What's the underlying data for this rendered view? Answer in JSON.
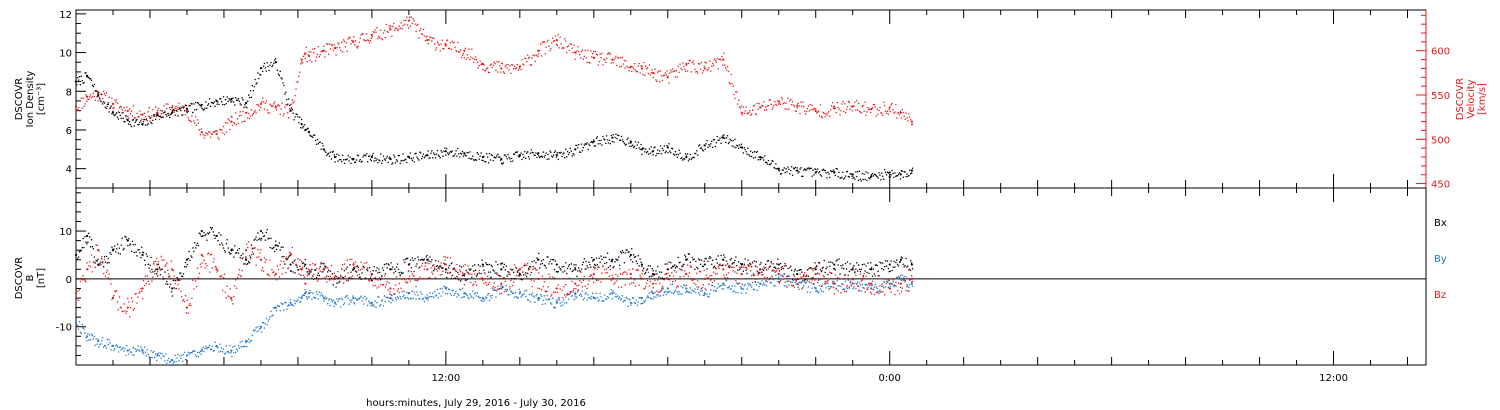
{
  "figure": {
    "xlabel": "hours:minutes, July 29, 2016 - July 30, 2016"
  },
  "colors": {
    "density": "#000000",
    "velocity": "#e41a1c",
    "bx": "#000000",
    "by": "#1f78c8",
    "bz": "#e41a1c"
  },
  "chart_data": [
    {
      "type": "scatter",
      "panel": "plasma",
      "x_unit": "hours since 2016-07-29 00:00",
      "xlim": [
        2.0,
        38.5
      ],
      "xticks": [
        {
          "x": 12,
          "label": "12:00"
        },
        {
          "x": 24,
          "label": "0:00"
        },
        {
          "x": 36,
          "label": "12:00"
        }
      ],
      "left_axis": {
        "label_lines": [
          "DSCOVR",
          "Ion Density",
          "[cm⁻³]"
        ],
        "ylim": [
          3,
          12.2
        ],
        "ticks": [
          4,
          6,
          8,
          10,
          12
        ]
      },
      "right_axis": {
        "label_lines": [
          "DSCOVR",
          "Velocity",
          "[km/s]"
        ],
        "ylim": [
          445,
          646
        ],
        "ticks": [
          450,
          500,
          550,
          600
        ]
      },
      "series": [
        {
          "key": "density",
          "axis": "left",
          "x": [
            2.0,
            2.3,
            2.6,
            3.0,
            3.4,
            3.8,
            4.2,
            4.6,
            5.0,
            5.4,
            5.8,
            6.2,
            6.6,
            7.0,
            7.4,
            7.8,
            8.1,
            8.2,
            8.3,
            8.7,
            9.0,
            9.5,
            10.0,
            10.5,
            11.0,
            11.5,
            12.0,
            12.5,
            13.0,
            13.5,
            14.0,
            14.5,
            15.0,
            15.5,
            16.0,
            16.5,
            17.0,
            17.3,
            17.6,
            18.0,
            18.5,
            19.0,
            19.5,
            20.0,
            20.5,
            21.0,
            21.5,
            22.0,
            22.5,
            23.0,
            23.5,
            24.0,
            24.3,
            24.6
          ],
          "y": [
            8.5,
            8.8,
            7.8,
            6.9,
            6.5,
            6.3,
            6.8,
            6.9,
            7.1,
            7.3,
            7.5,
            7.6,
            7.4,
            9.2,
            9.5,
            7.0,
            6.3,
            6.0,
            5.9,
            5.0,
            4.6,
            4.5,
            4.6,
            4.5,
            4.6,
            4.7,
            4.9,
            4.8,
            4.6,
            4.5,
            4.7,
            4.8,
            4.7,
            5.0,
            5.4,
            5.6,
            5.4,
            5.0,
            4.9,
            5.1,
            4.6,
            5.2,
            5.6,
            5.1,
            4.6,
            4.0,
            3.9,
            3.8,
            3.8,
            3.7,
            3.6,
            3.8,
            3.7,
            3.9
          ]
        },
        {
          "key": "velocity",
          "axis": "right",
          "x": [
            2.0,
            2.3,
            2.6,
            3.0,
            3.4,
            3.8,
            4.2,
            4.6,
            5.0,
            5.4,
            5.8,
            6.2,
            6.6,
            7.0,
            7.4,
            7.8,
            8.1,
            8.2,
            8.3,
            8.7,
            9.0,
            9.5,
            10.0,
            10.5,
            11.0,
            11.5,
            12.0,
            12.5,
            13.0,
            13.5,
            14.0,
            14.5,
            15.0,
            15.5,
            16.0,
            16.5,
            17.0,
            17.3,
            17.6,
            18.0,
            18.5,
            19.0,
            19.5,
            20.0,
            20.5,
            21.0,
            21.5,
            22.0,
            22.5,
            23.0,
            23.5,
            24.0,
            24.3,
            24.6
          ],
          "y": [
            537,
            548,
            552,
            540,
            532,
            528,
            530,
            536,
            533,
            508,
            506,
            520,
            530,
            540,
            536,
            532,
            590,
            597,
            594,
            600,
            603,
            610,
            618,
            624,
            634,
            612,
            606,
            600,
            585,
            580,
            582,
            600,
            612,
            598,
            592,
            590,
            582,
            580,
            575,
            570,
            585,
            580,
            590,
            530,
            536,
            543,
            538,
            532,
            535,
            537,
            534,
            536,
            530,
            520
          ]
        }
      ]
    },
    {
      "type": "scatter",
      "panel": "magnetic",
      "x_unit": "hours since 2016-07-29 00:00",
      "xlim": [
        2.0,
        38.5
      ],
      "xticks": [
        {
          "x": 12,
          "label": "12:00"
        },
        {
          "x": 24,
          "label": "0:00"
        },
        {
          "x": 36,
          "label": "12:00"
        }
      ],
      "left_axis": {
        "label_lines": [
          "DSCOVR",
          "B",
          "[nT]"
        ],
        "ylim": [
          -18,
          19
        ],
        "ticks": [
          -10,
          0,
          10
        ]
      },
      "zero_line": true,
      "series": [
        {
          "key": "bx",
          "name": "Bx",
          "x": [
            2.0,
            2.3,
            2.6,
            3.0,
            3.4,
            3.8,
            4.2,
            4.6,
            5.0,
            5.4,
            5.8,
            6.2,
            6.6,
            7.0,
            7.4,
            7.8,
            8.1,
            8.2,
            8.3,
            8.7,
            9.0,
            9.5,
            10.0,
            10.5,
            11.0,
            11.5,
            12.0,
            12.5,
            13.0,
            13.5,
            14.0,
            14.5,
            15.0,
            15.5,
            16.0,
            16.5,
            17.0,
            17.3,
            17.6,
            18.0,
            18.5,
            19.0,
            19.5,
            20.0,
            20.5,
            21.0,
            21.5,
            22.0,
            22.5,
            23.0,
            23.5,
            24.0,
            24.3,
            24.6
          ],
          "y": [
            5,
            9,
            3,
            6,
            8,
            5,
            2,
            -2,
            4,
            10,
            9,
            6,
            4,
            10,
            7,
            3,
            2,
            3,
            1,
            2,
            0,
            2,
            1,
            2,
            3,
            4,
            2,
            1,
            3,
            2,
            1,
            4,
            3,
            2,
            4,
            4,
            5,
            3,
            1,
            2,
            4,
            3,
            4,
            3,
            2,
            3,
            1,
            2,
            3,
            2,
            2,
            3,
            4,
            3
          ]
        },
        {
          "key": "by",
          "name": "By",
          "x": [
            2.0,
            2.3,
            2.6,
            3.0,
            3.4,
            3.8,
            4.2,
            4.6,
            5.0,
            5.4,
            5.8,
            6.2,
            6.6,
            7.0,
            7.4,
            7.8,
            8.1,
            8.2,
            8.3,
            8.7,
            9.0,
            9.5,
            10.0,
            10.5,
            11.0,
            11.5,
            12.0,
            12.5,
            13.0,
            13.5,
            14.0,
            14.5,
            15.0,
            15.5,
            16.0,
            16.5,
            17.0,
            17.3,
            17.6,
            18.0,
            18.5,
            19.0,
            19.5,
            20.0,
            20.5,
            21.0,
            21.5,
            22.0,
            22.5,
            23.0,
            23.5,
            24.0,
            24.3,
            24.6
          ],
          "y": [
            -9,
            -12,
            -13,
            -14,
            -15,
            -15,
            -16,
            -17,
            -16,
            -15,
            -14,
            -15,
            -13,
            -10,
            -6,
            -5,
            -4,
            -3,
            -3,
            -4,
            -5,
            -4,
            -5,
            -4,
            -3,
            -4,
            -2,
            -3,
            -4,
            -2,
            -3,
            -4,
            -5,
            -3,
            -4,
            -3,
            -5,
            -4,
            -3,
            -2,
            -2,
            -3,
            -1,
            -2,
            -1,
            0,
            -1,
            -2,
            -1,
            -1,
            -2,
            -1,
            0,
            -1
          ]
        },
        {
          "key": "bz",
          "name": "Bz",
          "x": [
            2.0,
            2.3,
            2.6,
            3.0,
            3.4,
            3.8,
            4.2,
            4.6,
            5.0,
            5.4,
            5.8,
            6.2,
            6.6,
            7.0,
            7.4,
            7.8,
            8.1,
            8.2,
            8.3,
            8.7,
            9.0,
            9.5,
            10.0,
            10.5,
            11.0,
            11.5,
            12.0,
            12.5,
            13.0,
            13.5,
            14.0,
            14.5,
            15.0,
            15.5,
            16.0,
            16.5,
            17.0,
            17.3,
            17.6,
            18.0,
            18.5,
            19.0,
            19.5,
            20.0,
            20.5,
            21.0,
            21.5,
            22.0,
            22.5,
            23.0,
            23.5,
            24.0,
            24.3,
            24.6
          ],
          "y": [
            -3,
            2,
            6,
            -4,
            -6,
            -2,
            3,
            2,
            -6,
            5,
            2,
            -4,
            6,
            4,
            1,
            5,
            2,
            -1,
            1,
            2,
            0,
            3,
            1,
            -2,
            0,
            2,
            3,
            1,
            0,
            -1,
            2,
            0,
            -2,
            -1,
            1,
            0,
            1,
            0,
            -1,
            0,
            1,
            0,
            2,
            1,
            2,
            1,
            0,
            1,
            -1,
            0,
            -1,
            -2,
            -1,
            0
          ]
        }
      ]
    }
  ]
}
